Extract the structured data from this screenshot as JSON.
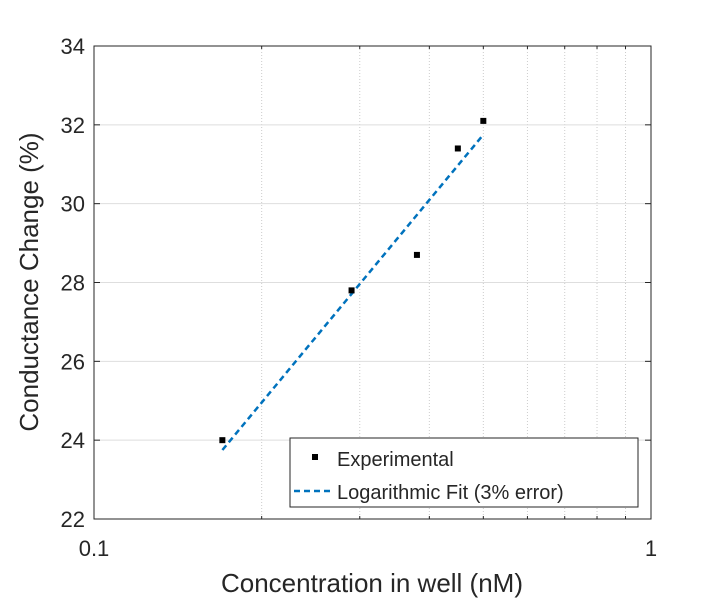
{
  "chart_data": {
    "type": "scatter",
    "xscale": "log",
    "xlim": [
      0.1,
      1
    ],
    "ylim": [
      22,
      34
    ],
    "xlabel": "Concentration in well (nM)",
    "ylabel": "Conductance Change (%)",
    "xticks": [
      {
        "value": 0.1,
        "label": "0.1"
      },
      {
        "value": 1,
        "label": "1"
      }
    ],
    "yticks": [
      22,
      24,
      26,
      28,
      30,
      32,
      34
    ],
    "grid": true,
    "legend_position": "bottom-right",
    "series": [
      {
        "name": "Experimental",
        "kind": "markers",
        "color": "#000000",
        "points": [
          {
            "x": 0.17,
            "y": 24.0
          },
          {
            "x": 0.29,
            "y": 27.8
          },
          {
            "x": 0.38,
            "y": 28.7
          },
          {
            "x": 0.45,
            "y": 31.4
          },
          {
            "x": 0.5,
            "y": 32.1
          }
        ]
      },
      {
        "name": "Logarithmic Fit (3% error)",
        "kind": "dashed-line",
        "color": "#0072BD",
        "points": [
          {
            "x": 0.17,
            "y": 23.75
          },
          {
            "x": 0.5,
            "y": 31.75
          }
        ]
      }
    ]
  }
}
